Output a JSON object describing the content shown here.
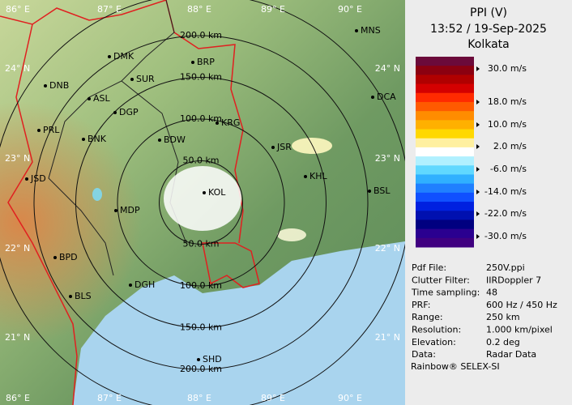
{
  "header": {
    "title": "PPI (V)",
    "time": "13:52 / 19-Sep-2025",
    "site": "Kolkata"
  },
  "legend": {
    "labels": [
      "30.0 m/s",
      "18.0 m/s",
      "10.0 m/s",
      "2.0 m/s",
      "-6.0 m/s",
      "-14.0 m/s",
      "-22.0 m/s",
      "-30.0 m/s"
    ]
  },
  "info": {
    "rows": [
      [
        "Pdf File:",
        "250V.ppi"
      ],
      [
        "Clutter Filter:",
        "IIRDoppler 7"
      ],
      [
        "Time sampling:",
        "48"
      ],
      [
        "PRF:",
        "600 Hz / 450 Hz"
      ],
      [
        "Range:",
        "250 km"
      ],
      [
        "Resolution:",
        "1.000 km/pixel"
      ],
      [
        "Elevation:",
        "0.2 deg"
      ],
      [
        "Data:",
        "Radar Data"
      ]
    ]
  },
  "footer": "Rainbow® SELEX-SI",
  "map": {
    "lon_labels": [
      "86° E",
      "87° E",
      "88° E",
      "89° E",
      "90° E"
    ],
    "lat_labels": [
      "24° N",
      "23° N",
      "22° N",
      "21° N"
    ],
    "range_labels": [
      "50.0 km",
      "100.0 km",
      "150.0 km",
      "200.0 km"
    ],
    "cities": [
      "MNS",
      "DMK",
      "BRP",
      "DNB",
      "SUR",
      "DCA",
      "ASL",
      "DGP",
      "KRG",
      "PRL",
      "BNK",
      "BDW",
      "JSR",
      "JSD",
      "KHL",
      "BSL",
      "MDP",
      "KOL",
      "BPD",
      "DGH",
      "BLS",
      "SHD"
    ]
  }
}
